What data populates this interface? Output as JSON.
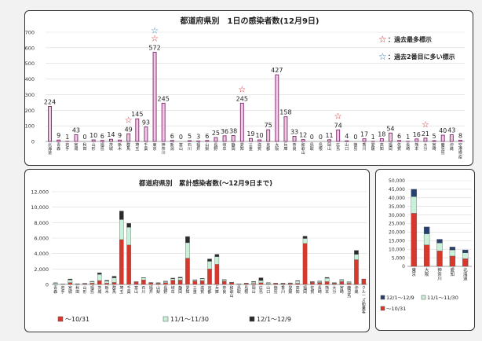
{
  "chart_data": [
    {
      "type": "bar",
      "title": "都道府県別　1日の感染者数(12月9日)",
      "ylim": [
        0,
        700
      ],
      "yticks": [
        0,
        100,
        200,
        300,
        400,
        500,
        600,
        700
      ],
      "categories": [
        "北海道",
        "青森",
        "岩手",
        "宮城",
        "秋田",
        "山形",
        "福島",
        "茨城",
        "栃木",
        "群馬",
        "埼玉",
        "千葉",
        "東京",
        "神奈川",
        "新潟",
        "富山",
        "石川",
        "福井",
        "山梨",
        "長野",
        "岐阜",
        "静岡",
        "愛知",
        "三重",
        "滋賀",
        "京都",
        "大阪",
        "兵庫",
        "奈良",
        "和歌山",
        "鳥取",
        "島根",
        "岡山",
        "広島",
        "山口",
        "徳島",
        "香川",
        "愛媛",
        "高知",
        "福岡",
        "佐賀",
        "長崎",
        "熊本",
        "大分",
        "宮崎",
        "鹿児島",
        "沖縄",
        "空港検疫"
      ],
      "values": [
        224,
        9,
        1,
        43,
        0,
        10,
        6,
        14,
        9,
        49,
        145,
        93,
        572,
        245,
        6,
        0,
        5,
        3,
        6,
        25,
        36,
        38,
        245,
        19,
        10,
        75,
        427,
        158,
        33,
        12,
        0,
        0,
        11,
        74,
        4,
        0,
        17,
        1,
        18,
        54,
        6,
        1,
        16,
        21,
        5,
        40,
        43,
        8
      ],
      "value_labels": [
        "224",
        "9",
        "1",
        "43",
        "0",
        "10",
        "6",
        "14",
        "9",
        "49",
        "145",
        "93",
        "572",
        "245",
        "6",
        "0",
        "5",
        "3",
        "6",
        "25",
        "36",
        "38",
        "245",
        "19",
        "10",
        "75",
        "427",
        "158",
        "33",
        "12",
        "0",
        "0",
        "11",
        "74",
        "4",
        "0",
        "17",
        "1",
        "18",
        "54",
        "6",
        "1",
        "16",
        "21",
        "5",
        "40",
        "43",
        "8"
      ],
      "record_high": [
        "群馬",
        "東京",
        "愛知",
        "広島",
        "大分"
      ],
      "record_second": [
        "東京"
      ],
      "legend": [
        {
          "symbol": "☆",
          "color": "#d42020",
          "label": "：過去最多標示"
        },
        {
          "symbol": "☆",
          "color": "#2a7fc0",
          "label": "：過去2番目に多い標示"
        }
      ],
      "bar_color": "#f0c8e6",
      "bar_edge": "#7a2a68"
    },
    {
      "type": "bar",
      "title": "都道府県別　累計感染者数(～12月9日まで)",
      "ylim": [
        0,
        12000
      ],
      "yticks": [
        "0",
        "2,000",
        "4,000",
        "6,000",
        "8,000",
        "10,000",
        "12,000"
      ],
      "ytick_values": [
        0,
        2000,
        4000,
        6000,
        8000,
        10000,
        12000
      ],
      "categories": [
        "青森",
        "岩手",
        "宮城",
        "秋田",
        "山形",
        "福島",
        "茨城",
        "栃木",
        "群馬",
        "埼玉",
        "千葉",
        "富山",
        "石川",
        "福井",
        "山梨",
        "長野",
        "岐阜",
        "静岡",
        "愛知",
        "三重",
        "滋賀",
        "京都",
        "兵庫",
        "奈良",
        "和歌山",
        "鳥取",
        "島根",
        "岡山",
        "広島",
        "山口",
        "徳島",
        "香川",
        "愛媛",
        "高知",
        "福岡",
        "佐賀",
        "長崎",
        "熊本",
        "大分",
        "宮崎",
        "鹿児島",
        "沖縄",
        "クルーズ船乗客"
      ],
      "series": [
        {
          "name": "～10/31",
          "color": "#d8372c",
          "values": [
            30,
            20,
            240,
            40,
            70,
            160,
            500,
            160,
            260,
            5800,
            5100,
            330,
            580,
            200,
            130,
            230,
            550,
            560,
            3400,
            450,
            480,
            2000,
            2600,
            420,
            230,
            40,
            140,
            110,
            210,
            50,
            140,
            90,
            120,
            140,
            5300,
            280,
            250,
            360,
            120,
            370,
            150,
            3200,
            710
          ]
        },
        {
          "name": "11/1～11/30",
          "color": "#c9f0d8",
          "values": [
            150,
            20,
            350,
            40,
            60,
            200,
            800,
            280,
            600,
            2600,
            2300,
            20,
            260,
            40,
            70,
            140,
            190,
            290,
            2000,
            120,
            250,
            1000,
            1000,
            170,
            40,
            15,
            20,
            200,
            300,
            150,
            15,
            50,
            60,
            300,
            650,
            70,
            150,
            450,
            70,
            200,
            150,
            700,
            0
          ]
        },
        {
          "name": "12/1～12/9",
          "color": "#2a2a2a",
          "values": [
            40,
            5,
            120,
            10,
            20,
            50,
            200,
            90,
            200,
            1100,
            500,
            5,
            40,
            10,
            20,
            60,
            80,
            100,
            800,
            40,
            60,
            300,
            300,
            50,
            20,
            5,
            5,
            80,
            350,
            30,
            5,
            20,
            20,
            60,
            300,
            20,
            30,
            100,
            40,
            60,
            40,
            500,
            0
          ]
        }
      ]
    },
    {
      "type": "bar",
      "ylim": [
        0,
        50000
      ],
      "yticks": [
        "0",
        "5,000",
        "10,000",
        "15,000",
        "20,000",
        "25,000",
        "30,000",
        "35,000",
        "40,000",
        "45,000",
        "50,000"
      ],
      "ytick_values": [
        0,
        5000,
        10000,
        15000,
        20000,
        25000,
        30000,
        35000,
        40000,
        45000,
        50000
      ],
      "categories": [
        "東京",
        "大阪",
        "神奈川",
        "愛知",
        "北海道"
      ],
      "series": [
        {
          "name": "～10/31",
          "color": "#d8372c",
          "values": [
            31000,
            12500,
            9000,
            6000,
            4500
          ]
        },
        {
          "name": "11/1～11/30",
          "color": "#c9f0d8",
          "values": [
            9700,
            6500,
            4700,
            3600,
            3400
          ]
        },
        {
          "name": "12/1～12/9",
          "color": "#27406f",
          "values": [
            4300,
            4000,
            2100,
            1700,
            1700
          ]
        }
      ]
    }
  ]
}
